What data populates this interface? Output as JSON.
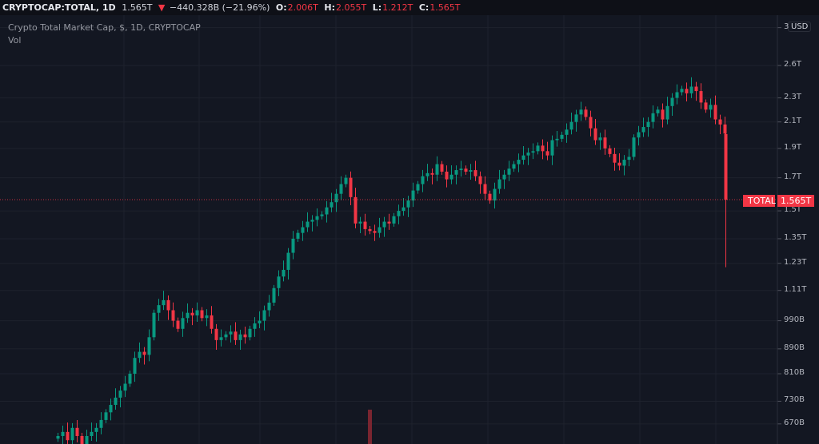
{
  "header": {
    "symbol": "CRYPTOCAP:TOTAL, 1D",
    "last": "1.565T",
    "change_icon": "triangle-down-icon",
    "change": "−440.328B (−21.96%)",
    "o_label": "O:",
    "o": "2.006T",
    "h_label": "H:",
    "h": "2.055T",
    "l_label": "L:",
    "l": "1.212T",
    "c_label": "C:",
    "c": "1.565T"
  },
  "legend": {
    "title": "Crypto Total Market Cap, $, 1D, CRYPTOCAP",
    "vol": "Vol"
  },
  "currency_button": "USD",
  "price_tag": {
    "name": "TOTAL",
    "value": "1.565T"
  },
  "colors": {
    "up": "#089981",
    "down": "#f23645",
    "background": "#131722",
    "grid": "#1e222d"
  },
  "chart_data": {
    "type": "candlestick",
    "y_scale": "log",
    "y_unit": "T (trillion USD)",
    "y_ticks": [
      {
        "label": "3",
        "value": 3.0
      },
      {
        "label": "2.6T",
        "value": 2.6
      },
      {
        "label": "2.3T",
        "value": 2.3
      },
      {
        "label": "2.1T",
        "value": 2.1
      },
      {
        "label": "1.9T",
        "value": 1.9
      },
      {
        "label": "1.7T",
        "value": 1.7
      },
      {
        "label": "1.5T",
        "value": 1.5
      },
      {
        "label": "1.35T",
        "value": 1.35
      },
      {
        "label": "1.23T",
        "value": 1.23
      },
      {
        "label": "1.11T",
        "value": 1.11
      },
      {
        "label": "990B",
        "value": 0.99
      },
      {
        "label": "890B",
        "value": 0.89
      },
      {
        "label": "810B",
        "value": 0.81
      },
      {
        "label": "730B",
        "value": 0.73
      },
      {
        "label": "670B",
        "value": 0.67
      }
    ],
    "closes": [
      0.64,
      0.65,
      0.63,
      0.66,
      0.64,
      0.62,
      0.64,
      0.65,
      0.66,
      0.68,
      0.7,
      0.72,
      0.74,
      0.76,
      0.78,
      0.81,
      0.86,
      0.88,
      0.87,
      0.93,
      1.02,
      1.05,
      1.07,
      1.03,
      0.99,
      0.96,
      1.0,
      1.02,
      1.01,
      1.03,
      1.0,
      1.01,
      0.96,
      0.92,
      0.93,
      0.94,
      0.95,
      0.92,
      0.94,
      0.93,
      0.96,
      0.98,
      0.99,
      1.03,
      1.06,
      1.12,
      1.17,
      1.2,
      1.28,
      1.35,
      1.38,
      1.41,
      1.44,
      1.45,
      1.47,
      1.48,
      1.52,
      1.55,
      1.6,
      1.66,
      1.7,
      1.58,
      1.43,
      1.44,
      1.4,
      1.39,
      1.38,
      1.41,
      1.44,
      1.43,
      1.47,
      1.5,
      1.52,
      1.56,
      1.62,
      1.66,
      1.71,
      1.73,
      1.72,
      1.79,
      1.74,
      1.69,
      1.72,
      1.75,
      1.76,
      1.74,
      1.75,
      1.71,
      1.66,
      1.6,
      1.56,
      1.63,
      1.69,
      1.72,
      1.76,
      1.79,
      1.82,
      1.85,
      1.87,
      1.88,
      1.92,
      1.88,
      1.85,
      1.96,
      1.97,
      2.0,
      2.04,
      2.1,
      2.16,
      2.2,
      2.14,
      2.05,
      1.96,
      1.98,
      1.9,
      1.86,
      1.8,
      1.78,
      1.82,
      1.84,
      1.98,
      2.02,
      2.06,
      2.1,
      2.17,
      2.2,
      2.12,
      2.23,
      2.3,
      2.35,
      2.38,
      2.34,
      2.4,
      2.36,
      2.26,
      2.2,
      2.24,
      2.12,
      2.08,
      2.01
    ],
    "last_candle": {
      "open": 2.006,
      "high": 2.055,
      "low": 1.212,
      "close": 1.565
    },
    "current_price": 1.565,
    "visible_volume_bar": {
      "candle_index": 65,
      "direction": "down"
    }
  }
}
